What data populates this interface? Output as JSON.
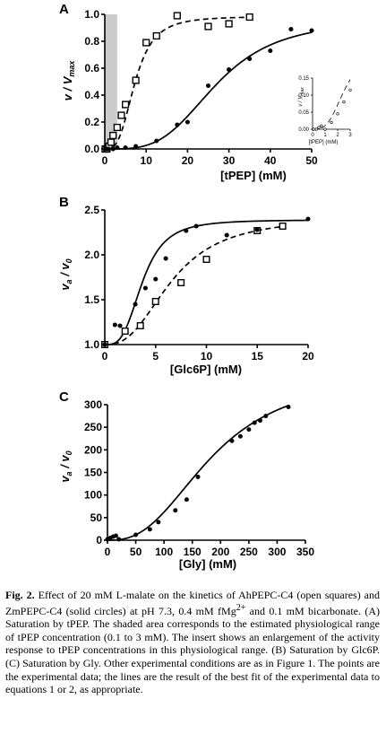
{
  "chart_data": [
    {
      "type": "scatter",
      "panel": "A",
      "xlabel": "[tPEP] (mM)",
      "ylabel_main": "v / V",
      "ylabel_sub": "max",
      "xlim": [
        0,
        50
      ],
      "ylim": [
        0,
        1.0
      ],
      "xticks": [
        "0",
        "10",
        "20",
        "30",
        "40",
        "50"
      ],
      "yticks": [
        "0.0",
        "0.2",
        "0.4",
        "0.6",
        "0.8",
        "1.0"
      ],
      "shaded_range": [
        0.1,
        3
      ],
      "series": [
        {
          "marker": "open-square",
          "curve": "dashed",
          "x": [
            0.1,
            0.5,
            1,
            1.5,
            2,
            3,
            4,
            5,
            7.5,
            10,
            12.5,
            17.5,
            25,
            30,
            35
          ],
          "y": [
            0.0,
            0.0,
            0.02,
            0.05,
            0.1,
            0.16,
            0.25,
            0.33,
            0.51,
            0.79,
            0.84,
            0.99,
            0.91,
            0.93,
            0.98
          ]
        },
        {
          "marker": "solid-circle",
          "curve": "solid",
          "x": [
            0.5,
            1,
            2,
            3,
            5,
            7.5,
            12.5,
            17.5,
            20,
            25,
            30,
            35,
            40,
            45,
            50
          ],
          "y": [
            0.0,
            0.0,
            0.0,
            0.01,
            0.01,
            0.02,
            0.06,
            0.18,
            0.2,
            0.47,
            0.59,
            0.67,
            0.73,
            0.89,
            0.88
          ]
        }
      ],
      "inset": {
        "xlabel": "[tPEP] (mM)",
        "ylabel_main": "v / V",
        "ylabel_sub": "max",
        "xlim": [
          0,
          3
        ],
        "ylim": [
          0,
          0.15
        ],
        "xticks": [
          "0",
          "1",
          "2",
          "3"
        ],
        "yticks": [
          "0.00",
          "0.05",
          "0.10",
          "0.15"
        ],
        "points": {
          "x": [
            0.1,
            0.3,
            0.5,
            0.7,
            1.0,
            1.5,
            2.0,
            2.5,
            3.0
          ],
          "y": [
            0.0,
            0.0,
            0.005,
            0.01,
            0.0,
            0.02,
            0.045,
            0.08,
            0.115
          ]
        }
      }
    },
    {
      "type": "scatter",
      "panel": "B",
      "xlabel": "[Glc6P] (mM)",
      "ylabel_main": "v",
      "ylabel_sub1": "a",
      "ylabel_mid": " / v",
      "ylabel_sub2": "0",
      "xlim": [
        0,
        20
      ],
      "ylim": [
        1.0,
        2.5
      ],
      "xticks": [
        "0",
        "5",
        "10",
        "15",
        "20"
      ],
      "yticks": [
        "1.0",
        "1.5",
        "2.0",
        "2.5"
      ],
      "series": [
        {
          "marker": "open-square",
          "curve": "dashed",
          "x": [
            0,
            2,
            3.5,
            5,
            7.5,
            10,
            15,
            17.5
          ],
          "y": [
            1.0,
            1.15,
            1.21,
            1.48,
            1.69,
            1.95,
            2.27,
            2.32
          ]
        },
        {
          "marker": "solid-circle",
          "curve": "solid",
          "x": [
            0,
            1,
            1.5,
            3,
            4,
            5,
            6,
            8,
            9,
            12,
            15,
            20
          ],
          "y": [
            1.0,
            1.22,
            1.21,
            1.45,
            1.63,
            1.73,
            1.96,
            2.27,
            2.32,
            2.22,
            2.28,
            2.4
          ]
        }
      ]
    },
    {
      "type": "scatter",
      "panel": "C",
      "xlabel": "[Gly] (mM)",
      "ylabel_main": "v",
      "ylabel_sub1": "a",
      "ylabel_mid": " / v",
      "ylabel_sub2": "0",
      "xlim": [
        0,
        350
      ],
      "ylim": [
        0,
        300
      ],
      "xticks": [
        "0",
        "50",
        "100",
        "150",
        "200",
        "250",
        "300",
        "350"
      ],
      "yticks": [
        "0",
        "50",
        "100",
        "150",
        "200",
        "250",
        "300"
      ],
      "series": [
        {
          "marker": "solid-circle",
          "curve": "solid",
          "x": [
            0,
            5,
            10,
            15,
            20,
            50,
            75,
            90,
            120,
            140,
            160,
            220,
            235,
            250,
            260,
            270,
            280,
            320
          ],
          "y": [
            2,
            5,
            8,
            10,
            2,
            12,
            24,
            40,
            66,
            90,
            140,
            220,
            230,
            245,
            260,
            265,
            275,
            295
          ]
        }
      ]
    }
  ],
  "caption": {
    "label": "Fig. 2.",
    "text_before_sup": " Effect of 20 mM L-malate on the kinetics of AhPEPC-C4 (open squares) and ZmPEPC-C4 (solid circles) at pH 7.3, 0.4 mM fMg",
    "sup": "2+",
    "text_after_sup": " and 0.1 mM bicarbonate. (A) Saturation by tPEP. The shaded area corresponds to the estimated physiological range of tPEP concentration (0.1 to 3 mM). The insert shows an enlargement of the activity response to tPEP concentrations in this physiological range. (B) Saturation by Glc6P. (C) Saturation by Gly. Other experimental conditions are as in Figure 1. The points are the experimental data; the lines are the result of the best fit of the experimental data to equations 1 or 2, as appropriate."
  }
}
